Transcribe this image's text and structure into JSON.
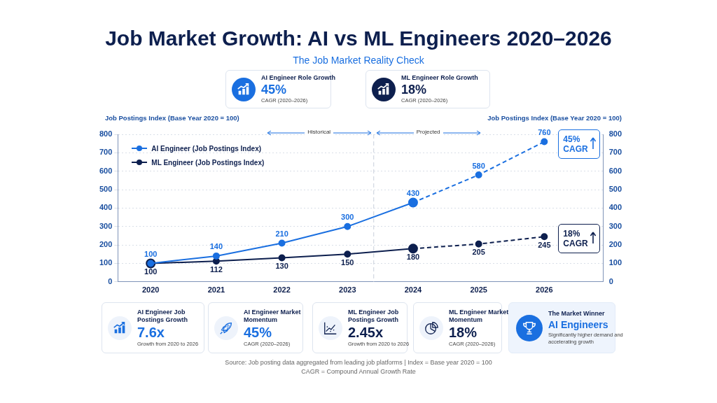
{
  "chart_data": [
    {
      "type": "line",
      "title": "Job Market Growth: AI vs ML Engineers 2020–2026",
      "subtitle": "The Job Market Reality Check",
      "ylabel": "Job Postings Index (Base Year 2020 = 100)",
      "y2label": "Job Postings Index (Base Year 2020 = 100)",
      "x": [
        2020,
        2021,
        2022,
        2023,
        2024,
        2025,
        2026
      ],
      "xlim": [
        2019.5,
        2026.9
      ],
      "xticks": [
        2020,
        2021,
        2022,
        2023,
        2024,
        2025,
        2026
      ],
      "ylim": [
        0,
        800
      ],
      "yticks": [
        0,
        100,
        200,
        300,
        400,
        500,
        600,
        700,
        800
      ],
      "y2lim": [
        0,
        800
      ],
      "y2ticks": [
        0,
        100,
        200,
        300,
        400,
        500,
        600,
        700,
        800
      ],
      "grid": "y",
      "legend": "top left",
      "marker": "circle",
      "series": [
        {
          "name": "AI Engineer (Job Postings Index)",
          "color": "#1a6fe0",
          "line_style": "solid",
          "values": [
            100,
            140,
            210,
            300,
            430,
            null,
            null
          ],
          "value_labels": [
            "100",
            "140",
            "210",
            "300",
            "430",
            null,
            null
          ]
        },
        {
          "color": "#1a6fe0",
          "line_style": "dashed",
          "values": [
            null,
            null,
            null,
            null,
            430,
            580,
            760
          ],
          "value_labels": [
            null,
            null,
            null,
            null,
            null,
            "580",
            "760"
          ]
        },
        {
          "name": "ML Engineer (Job Postings Index)",
          "color": "#0d1f4e",
          "line_style": "solid",
          "values": [
            100,
            112,
            130,
            150,
            180,
            null,
            null
          ],
          "value_labels": [
            "100",
            "112",
            "130",
            "150",
            "180",
            null,
            null
          ]
        },
        {
          "color": "#0d1f4e",
          "line_style": "dashed",
          "values": [
            null,
            null,
            null,
            null,
            180,
            205,
            245
          ],
          "value_labels": [
            null,
            null,
            null,
            null,
            null,
            "205",
            "245"
          ]
        }
      ],
      "ref_lines": [
        {
          "axis": "x",
          "value": 2023.4,
          "color": "#c8cfdb",
          "line_style": "dashed"
        }
      ],
      "annotations": [
        "Historical",
        "Projected",
        {
          "text": "45%\nCAGR",
          "x": 2026,
          "y": 760
        },
        {
          "text": "18%\nCAGR",
          "x": 2026,
          "y": 245
        },
        "Source: Job posting data aggregated from leading job platforms  |  Index = Base year 2020 = 100",
        "CAGR = Compound Annual Growth Rate"
      ]
    },
    {
      "type": "other",
      "title": "AI Engineer Role Growth",
      "annotations": [
        "45%",
        "CAGR (2020–2026)"
      ]
    },
    {
      "type": "other",
      "title": "ML Engineer Role Growth",
      "annotations": [
        "18%",
        "CAGR (2020–2026)"
      ]
    },
    {
      "type": "other",
      "title": "AI Engineer Job Postings Growth",
      "annotations": [
        "7.6x",
        "Growth from 2020 to 2026"
      ]
    },
    {
      "type": "other",
      "title": "AI Engineer Market Momentum",
      "annotations": [
        "45%",
        "CAGR (2020–2026)"
      ]
    },
    {
      "type": "other",
      "title": "ML Engineer Job Postings Growth",
      "annotations": [
        "2.45x",
        "Growth from 2020 to 2026"
      ]
    },
    {
      "type": "other",
      "title": "ML Engineer Market Momentum",
      "annotations": [
        "18%",
        "CAGR (2020–2026)"
      ]
    },
    {
      "type": "other",
      "title": "The Market Winner",
      "annotations": [
        "AI Engineers",
        "Significantly higher demand and accelerating growth"
      ]
    }
  ]
}
